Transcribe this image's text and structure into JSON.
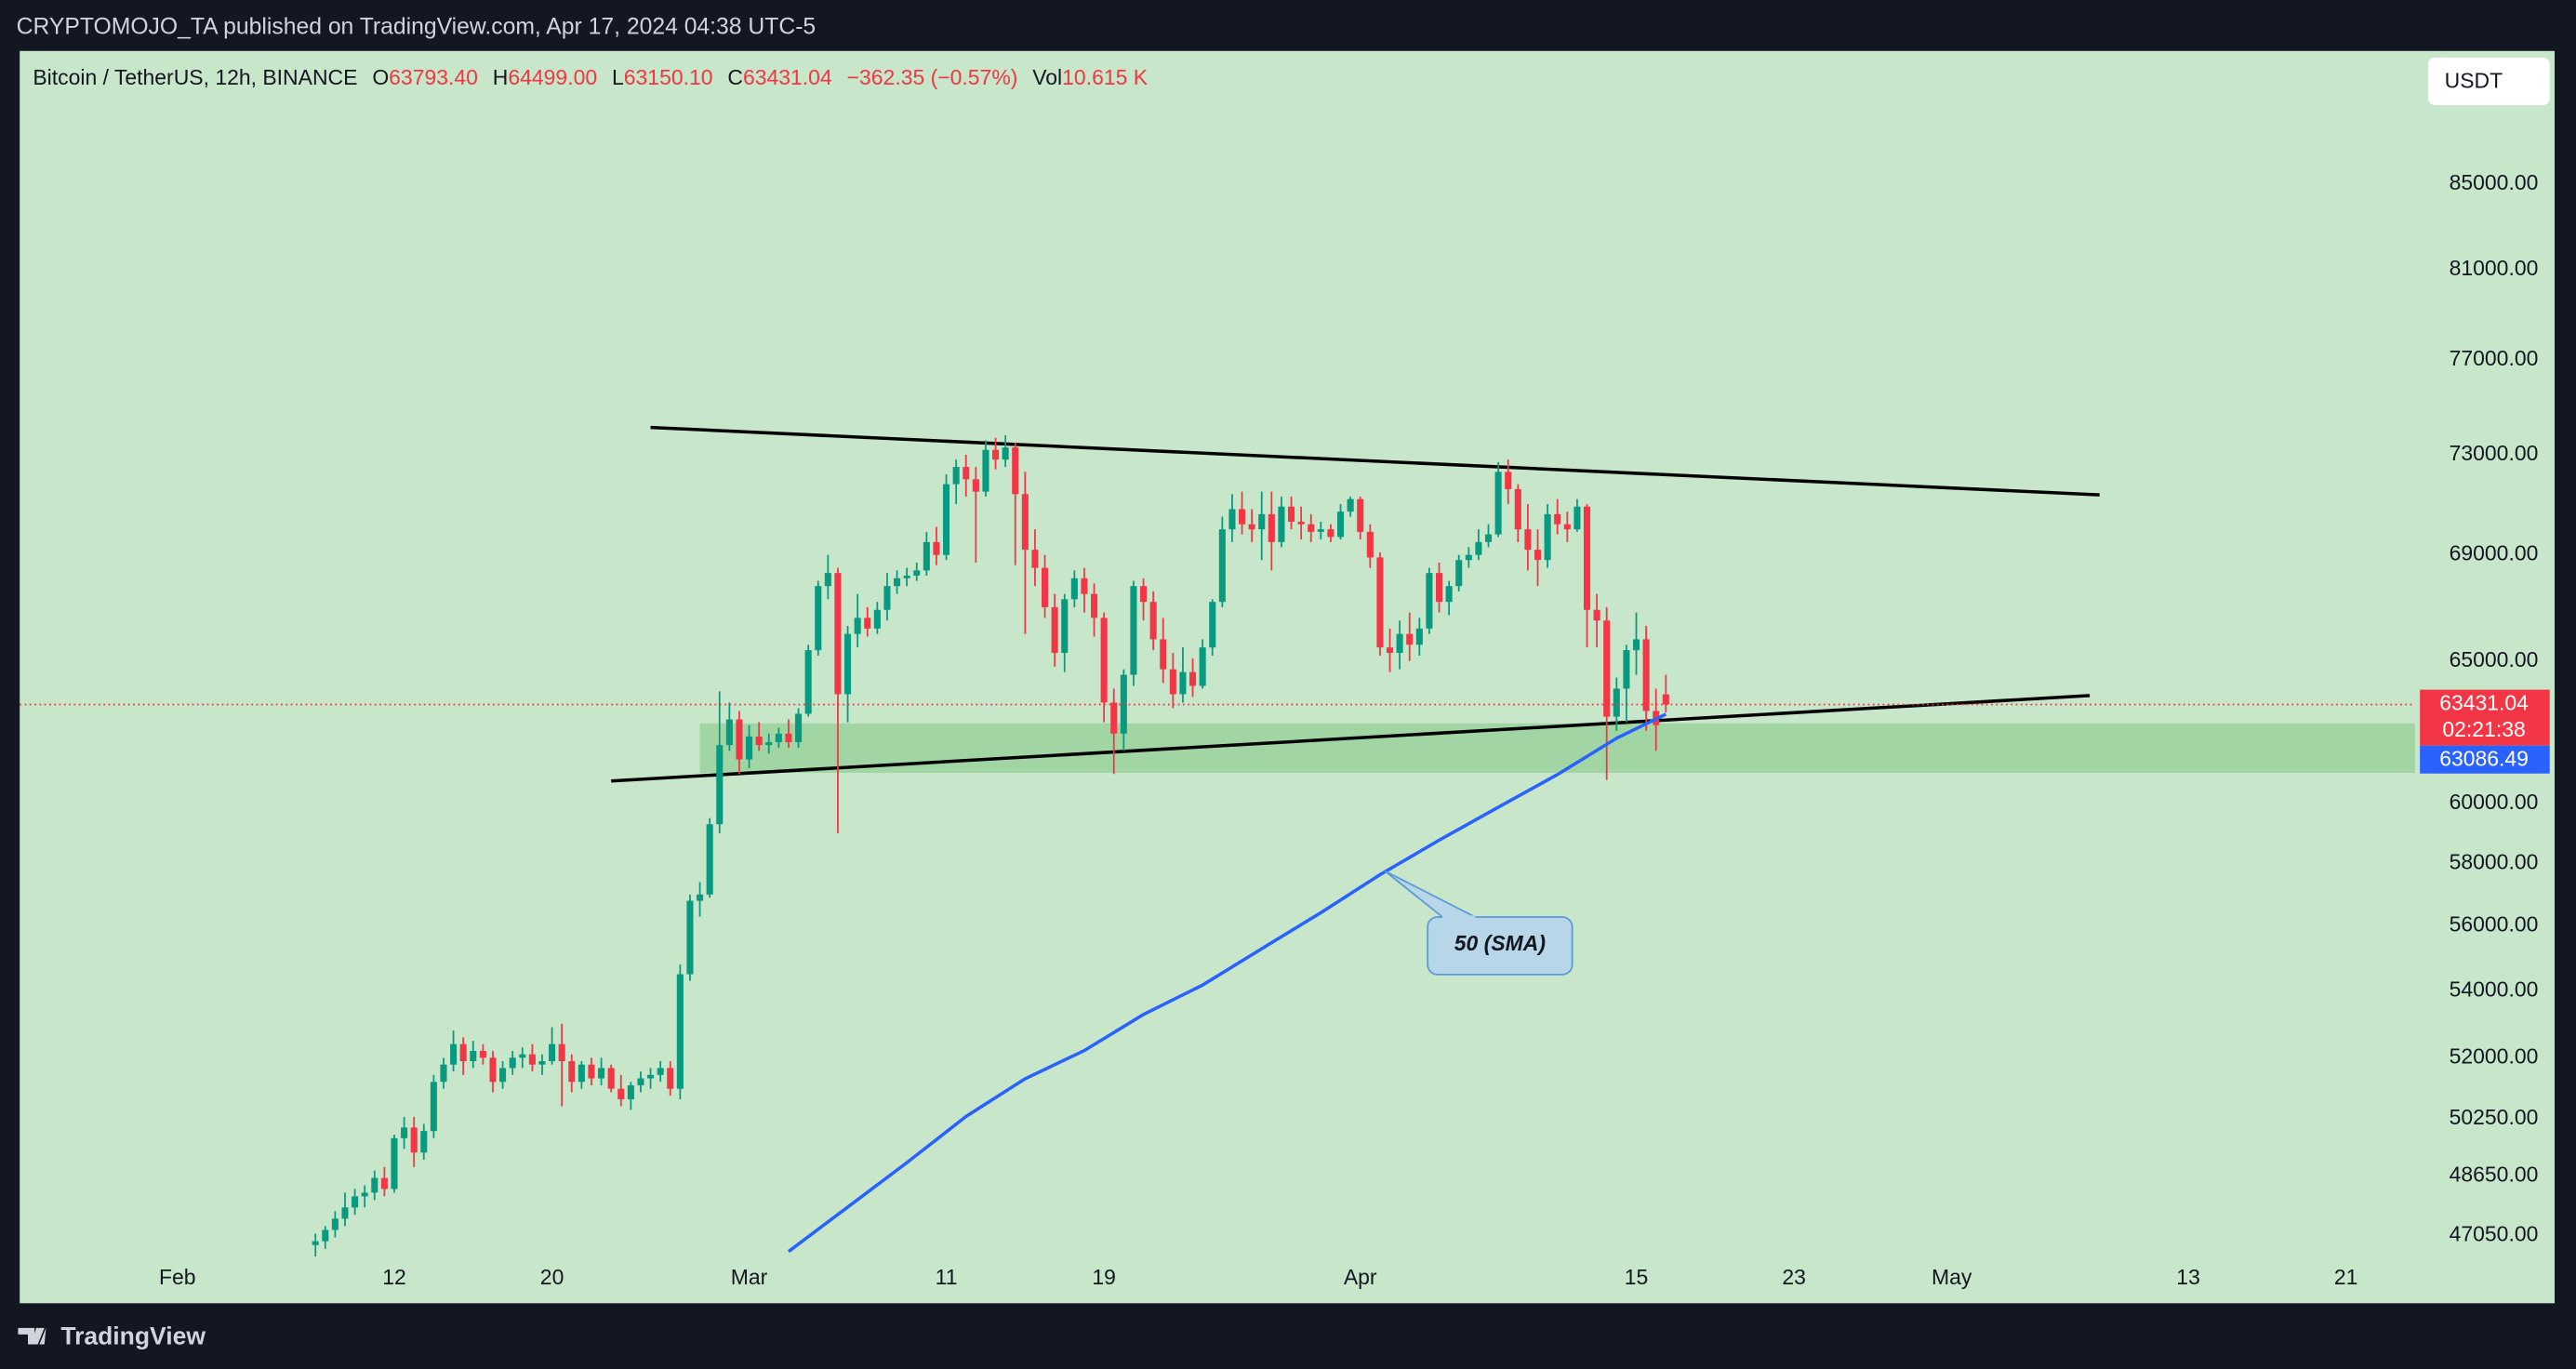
{
  "header": "CRYPTOMOJO_TA published on TradingView.com, Apr 17, 2024 04:38 UTC-5",
  "legend": {
    "symbol": "Bitcoin / TetherUS, 12h, BINANCE",
    "o_label": "O",
    "o": "63793.40",
    "h_label": "H",
    "h": "64499.00",
    "l_label": "L",
    "l": "63150.10",
    "c_label": "C",
    "c": "63431.04",
    "change": "−362.35 (−0.57%)",
    "vol_label": "Vol",
    "vol": "10.615 K"
  },
  "currency_button": "USDT",
  "countdown": "02:21:38",
  "footer": "TradingView",
  "chart_data": {
    "type": "candlestick",
    "log_scale": true,
    "grid": false,
    "background": "#c8e6c9",
    "up_color": "#089981",
    "down_color": "#f23645",
    "xlim": [
      "Jan 24 00:00",
      "May 24 12:00"
    ],
    "xticks": [
      {
        "value": "Feb 1",
        "label": "Feb"
      },
      {
        "value": "Feb 12",
        "label": "12"
      },
      {
        "value": "Feb 20",
        "label": "20"
      },
      {
        "value": "Mar 1",
        "label": "Mar"
      },
      {
        "value": "Mar 11",
        "label": "11"
      },
      {
        "value": "Mar 19",
        "label": "19"
      },
      {
        "value": "Apr 1",
        "label": "Apr"
      },
      {
        "value": "Apr 15",
        "label": "15"
      },
      {
        "value": "Apr 23",
        "label": "23"
      },
      {
        "value": "May 1",
        "label": "May"
      },
      {
        "value": "May 13",
        "label": "13"
      },
      {
        "value": "May 21",
        "label": "21"
      }
    ],
    "ylim": [
      46480,
      91700
    ],
    "yticks": [
      {
        "value": 85000,
        "label": "85000.00"
      },
      {
        "value": 81000,
        "label": "81000.00"
      },
      {
        "value": 77000,
        "label": "77000.00"
      },
      {
        "value": 73000,
        "label": "73000.00"
      },
      {
        "value": 69000,
        "label": "69000.00"
      },
      {
        "value": 65000,
        "label": "65000.00"
      },
      {
        "value": 60000,
        "label": "60000.00"
      },
      {
        "value": 58000,
        "label": "58000.00"
      },
      {
        "value": 56000,
        "label": "56000.00"
      },
      {
        "value": 54000,
        "label": "54000.00"
      },
      {
        "value": 52000,
        "label": "52000.00"
      },
      {
        "value": 50250,
        "label": "50250.00"
      },
      {
        "value": 48650,
        "label": "48650.00"
      },
      {
        "value": 47050,
        "label": "47050.00"
      }
    ],
    "x": [
      "Feb 8 00:00",
      "Feb 8 12:00",
      "Feb 9 00:00",
      "Feb 9 12:00",
      "Feb 10 00:00",
      "Feb 10 12:00",
      "Feb 11 00:00",
      "Feb 11 12:00",
      "Feb 12 00:00",
      "Feb 12 12:00",
      "Feb 13 00:00",
      "Feb 13 12:00",
      "Feb 14 00:00",
      "Feb 14 12:00",
      "Feb 15 00:00",
      "Feb 15 12:00",
      "Feb 16 00:00",
      "Feb 16 12:00",
      "Feb 17 00:00",
      "Feb 17 12:00",
      "Feb 18 00:00",
      "Feb 18 12:00",
      "Feb 19 00:00",
      "Feb 19 12:00",
      "Feb 20 00:00",
      "Feb 20 12:00",
      "Feb 21 00:00",
      "Feb 21 12:00",
      "Feb 22 00:00",
      "Feb 22 12:00",
      "Feb 23 00:00",
      "Feb 23 12:00",
      "Feb 24 00:00",
      "Feb 24 12:00",
      "Feb 25 00:00",
      "Feb 25 12:00",
      "Feb 26 00:00",
      "Feb 26 12:00",
      "Feb 27 00:00",
      "Feb 27 12:00",
      "Feb 28 00:00",
      "Feb 28 12:00",
      "Feb 29 00:00",
      "Feb 29 12:00",
      "Mar 1 00:00",
      "Mar 1 12:00",
      "Mar 2 00:00",
      "Mar 2 12:00",
      "Mar 3 00:00",
      "Mar 3 12:00",
      "Mar 4 00:00",
      "Mar 4 12:00",
      "Mar 5 00:00",
      "Mar 5 12:00",
      "Mar 6 00:00",
      "Mar 6 12:00",
      "Mar 7 00:00",
      "Mar 7 12:00",
      "Mar 8 00:00",
      "Mar 8 12:00",
      "Mar 9 00:00",
      "Mar 9 12:00",
      "Mar 10 00:00",
      "Mar 10 12:00",
      "Mar 11 00:00",
      "Mar 11 12:00",
      "Mar 12 00:00",
      "Mar 12 12:00",
      "Mar 13 00:00",
      "Mar 13 12:00",
      "Mar 14 00:00",
      "Mar 14 12:00",
      "Mar 15 00:00",
      "Mar 15 12:00",
      "Mar 16 00:00",
      "Mar 16 12:00",
      "Mar 17 00:00",
      "Mar 17 12:00",
      "Mar 18 00:00",
      "Mar 18 12:00",
      "Mar 19 00:00",
      "Mar 19 12:00",
      "Mar 20 00:00",
      "Mar 20 12:00",
      "Mar 21 00:00",
      "Mar 21 12:00",
      "Mar 22 00:00",
      "Mar 22 12:00",
      "Mar 23 00:00",
      "Mar 23 12:00",
      "Mar 24 00:00",
      "Mar 24 12:00",
      "Mar 25 00:00",
      "Mar 25 12:00",
      "Mar 26 00:00",
      "Mar 26 12:00",
      "Mar 27 00:00",
      "Mar 27 12:00",
      "Mar 28 00:00",
      "Mar 28 12:00",
      "Mar 29 00:00",
      "Mar 29 12:00",
      "Mar 30 00:00",
      "Mar 30 12:00",
      "Mar 31 00:00",
      "Mar 31 12:00",
      "Apr 1 00:00",
      "Apr 1 12:00",
      "Apr 2 00:00",
      "Apr 2 12:00",
      "Apr 3 00:00",
      "Apr 3 12:00",
      "Apr 4 00:00",
      "Apr 4 12:00",
      "Apr 5 00:00",
      "Apr 5 12:00",
      "Apr 6 00:00",
      "Apr 6 12:00",
      "Apr 7 00:00",
      "Apr 7 12:00",
      "Apr 8 00:00",
      "Apr 8 12:00",
      "Apr 9 00:00",
      "Apr 9 12:00",
      "Apr 10 00:00",
      "Apr 10 12:00",
      "Apr 11 00:00",
      "Apr 11 12:00",
      "Apr 12 00:00",
      "Apr 12 12:00",
      "Apr 13 00:00",
      "Apr 13 12:00",
      "Apr 14 00:00",
      "Apr 14 12:00",
      "Apr 15 00:00",
      "Apr 15 12:00",
      "Apr 16 00:00",
      "Apr 16 12:00"
    ],
    "candles": [
      [
        46800,
        47100,
        46500,
        46900
      ],
      [
        46900,
        47300,
        46700,
        47200
      ],
      [
        47200,
        47700,
        47000,
        47500
      ],
      [
        47500,
        48200,
        47300,
        47800
      ],
      [
        47800,
        48300,
        47600,
        48100
      ],
      [
        48100,
        48400,
        47800,
        48200
      ],
      [
        48200,
        48800,
        48000,
        48600
      ],
      [
        48600,
        48900,
        48100,
        48300
      ],
      [
        48300,
        49800,
        48200,
        49700
      ],
      [
        49700,
        50300,
        49400,
        50000
      ],
      [
        50000,
        50300,
        48900,
        49300
      ],
      [
        49300,
        50100,
        49100,
        49900
      ],
      [
        49900,
        51500,
        49700,
        51300
      ],
      [
        51300,
        52000,
        51100,
        51800
      ],
      [
        51800,
        52800,
        51600,
        52400
      ],
      [
        52400,
        52600,
        51500,
        51900
      ],
      [
        51900,
        52500,
        51700,
        52200
      ],
      [
        52200,
        52400,
        51800,
        52000
      ],
      [
        52000,
        52200,
        51000,
        51300
      ],
      [
        51300,
        51900,
        51100,
        51700
      ],
      [
        51700,
        52200,
        51500,
        52000
      ],
      [
        52000,
        52300,
        51700,
        52100
      ],
      [
        52100,
        52400,
        51600,
        51800
      ],
      [
        51800,
        52100,
        51500,
        51900
      ],
      [
        51900,
        52900,
        51800,
        52400
      ],
      [
        52400,
        53000,
        50600,
        51900
      ],
      [
        51900,
        52100,
        51000,
        51300
      ],
      [
        51300,
        51900,
        51100,
        51800
      ],
      [
        51800,
        52000,
        51200,
        51400
      ],
      [
        51400,
        52000,
        51200,
        51700
      ],
      [
        51700,
        51800,
        51000,
        51100
      ],
      [
        51100,
        51500,
        50600,
        50800
      ],
      [
        50800,
        51300,
        50500,
        51200
      ],
      [
        51200,
        51600,
        51000,
        51400
      ],
      [
        51400,
        51700,
        51100,
        51500
      ],
      [
        51500,
        51900,
        51300,
        51700
      ],
      [
        51700,
        51900,
        50900,
        51100
      ],
      [
        51100,
        54800,
        50800,
        54500
      ],
      [
        54500,
        57000,
        54300,
        56800
      ],
      [
        56800,
        57400,
        56300,
        57000
      ],
      [
        57000,
        59500,
        56900,
        59300
      ],
      [
        59300,
        63900,
        59000,
        62000
      ],
      [
        62000,
        63500,
        61800,
        62900
      ],
      [
        62900,
        63200,
        61000,
        61500
      ],
      [
        61500,
        62700,
        61200,
        62300
      ],
      [
        62300,
        62800,
        61800,
        62000
      ],
      [
        62000,
        62400,
        61700,
        62100
      ],
      [
        62100,
        62600,
        61900,
        62400
      ],
      [
        62400,
        62900,
        61900,
        62100
      ],
      [
        62100,
        63300,
        61900,
        63100
      ],
      [
        63100,
        65600,
        63000,
        65400
      ],
      [
        65400,
        68000,
        65200,
        67800
      ],
      [
        67800,
        69000,
        67300,
        68300
      ],
      [
        68300,
        68500,
        59000,
        63800
      ],
      [
        63800,
        66300,
        62800,
        66000
      ],
      [
        66000,
        67500,
        65500,
        66600
      ],
      [
        66600,
        67000,
        65900,
        66200
      ],
      [
        66200,
        67200,
        66000,
        66900
      ],
      [
        66900,
        68300,
        66500,
        67800
      ],
      [
        67800,
        68400,
        67500,
        68100
      ],
      [
        68100,
        68500,
        67800,
        68200
      ],
      [
        68200,
        68700,
        68000,
        68400
      ],
      [
        68400,
        69900,
        68200,
        69500
      ],
      [
        69500,
        70100,
        68600,
        69000
      ],
      [
        69000,
        72200,
        68800,
        71800
      ],
      [
        71800,
        72800,
        71000,
        72500
      ],
      [
        72500,
        73000,
        71300,
        72000
      ],
      [
        72000,
        72500,
        68700,
        71500
      ],
      [
        71500,
        73600,
        71300,
        73200
      ],
      [
        73200,
        73700,
        72400,
        72800
      ],
      [
        72800,
        73800,
        72500,
        73300
      ],
      [
        73300,
        73500,
        68600,
        71400
      ],
      [
        71400,
        72300,
        66000,
        69200
      ],
      [
        69200,
        70000,
        67800,
        68500
      ],
      [
        68500,
        69000,
        66600,
        67000
      ],
      [
        67000,
        67500,
        64800,
        65300
      ],
      [
        65300,
        67500,
        64600,
        67300
      ],
      [
        67300,
        68400,
        67000,
        68100
      ],
      [
        68100,
        68500,
        66800,
        67500
      ],
      [
        67500,
        67900,
        65900,
        66600
      ],
      [
        66600,
        66800,
        62800,
        63500
      ],
      [
        63500,
        64000,
        61000,
        62400
      ],
      [
        62400,
        64700,
        61800,
        64500
      ],
      [
        64500,
        68000,
        64100,
        67800
      ],
      [
        67800,
        68100,
        66500,
        67200
      ],
      [
        67200,
        67600,
        65400,
        65800
      ],
      [
        65800,
        66600,
        64200,
        64700
      ],
      [
        64700,
        65300,
        63300,
        63800
      ],
      [
        63800,
        65500,
        63500,
        64600
      ],
      [
        64600,
        65100,
        63700,
        64100
      ],
      [
        64100,
        65800,
        64000,
        65500
      ],
      [
        65500,
        67300,
        65200,
        67200
      ],
      [
        67200,
        70500,
        67000,
        70000
      ],
      [
        70000,
        71400,
        69500,
        70800
      ],
      [
        70800,
        71500,
        69800,
        70200
      ],
      [
        70200,
        70800,
        69500,
        70000
      ],
      [
        70000,
        71500,
        68800,
        70600
      ],
      [
        70600,
        71500,
        68400,
        69500
      ],
      [
        69500,
        71300,
        69300,
        70900
      ],
      [
        70900,
        71300,
        70000,
        70300
      ],
      [
        70300,
        70900,
        69600,
        70200
      ],
      [
        70200,
        70600,
        69500,
        69900
      ],
      [
        69900,
        70300,
        69600,
        70000
      ],
      [
        70000,
        70200,
        69500,
        69700
      ],
      [
        69700,
        71000,
        69600,
        70700
      ],
      [
        70700,
        71300,
        70500,
        71200
      ],
      [
        71200,
        71300,
        69600,
        69900
      ],
      [
        69900,
        70200,
        68500,
        68900
      ],
      [
        68900,
        69100,
        65200,
        65500
      ],
      [
        65500,
        66200,
        64600,
        65300
      ],
      [
        65300,
        66500,
        64700,
        66000
      ],
      [
        66000,
        66800,
        65000,
        65600
      ],
      [
        65600,
        66600,
        65200,
        66200
      ],
      [
        66200,
        68500,
        66000,
        68300
      ],
      [
        68300,
        68700,
        66800,
        67200
      ],
      [
        67200,
        68000,
        66700,
        67800
      ],
      [
        67800,
        69000,
        67600,
        68800
      ],
      [
        68800,
        69300,
        68500,
        69000
      ],
      [
        69000,
        70000,
        68800,
        69500
      ],
      [
        69500,
        70200,
        69300,
        69800
      ],
      [
        69800,
        72700,
        69700,
        72300
      ],
      [
        72300,
        72800,
        71000,
        71600
      ],
      [
        71600,
        71800,
        69500,
        70000
      ],
      [
        70000,
        71000,
        68400,
        69200
      ],
      [
        69200,
        70000,
        67800,
        68800
      ],
      [
        68800,
        71000,
        68500,
        70600
      ],
      [
        70600,
        71200,
        69800,
        70200
      ],
      [
        70200,
        70700,
        69500,
        70000
      ],
      [
        70000,
        71200,
        69900,
        70900
      ],
      [
        70900,
        71000,
        65500,
        66900
      ],
      [
        66900,
        67500,
        65500,
        66500
      ],
      [
        66500,
        67000,
        60800,
        63000
      ],
      [
        63000,
        64400,
        62500,
        64000
      ],
      [
        64000,
        65600,
        62800,
        65400
      ],
      [
        65400,
        66800,
        64500,
        65800
      ],
      [
        65800,
        66300,
        62500,
        63200
      ],
      [
        63200,
        64000,
        61800,
        62700
      ],
      [
        63793.4,
        64499,
        63150.1,
        63431.04
      ]
    ],
    "sma": {
      "name": "50 (SMA)",
      "color": "#2962ff",
      "x": [
        "Mar 3",
        "Mar 6",
        "Mar 9",
        "Mar 12",
        "Mar 15",
        "Mar 18",
        "Mar 21",
        "Mar 24",
        "Mar 27",
        "Mar 30",
        "Apr 2",
        "Apr 5",
        "Apr 8",
        "Apr 11",
        "Apr 14",
        "Apr 16 12:00"
      ],
      "values": [
        46630,
        47810,
        49020,
        50310,
        51390,
        52210,
        53280,
        54170,
        55290,
        56420,
        57640,
        58770,
        59870,
        60980,
        62240,
        63086.49
      ]
    },
    "trendlines": [
      {
        "color": "#000000",
        "x": [
          "Feb 25 00:00",
          "May 8 12:00"
        ],
        "values": [
          74130,
          71370
        ]
      },
      {
        "color": "#000000",
        "x": [
          "Feb 23 00:00",
          "May 8 00:00"
        ],
        "values": [
          60760,
          63750
        ]
      }
    ],
    "zone": {
      "color": "#81c784",
      "x": [
        "Feb 27 12:00"
      ],
      "values": [
        62760,
        61040
      ]
    }
  }
}
